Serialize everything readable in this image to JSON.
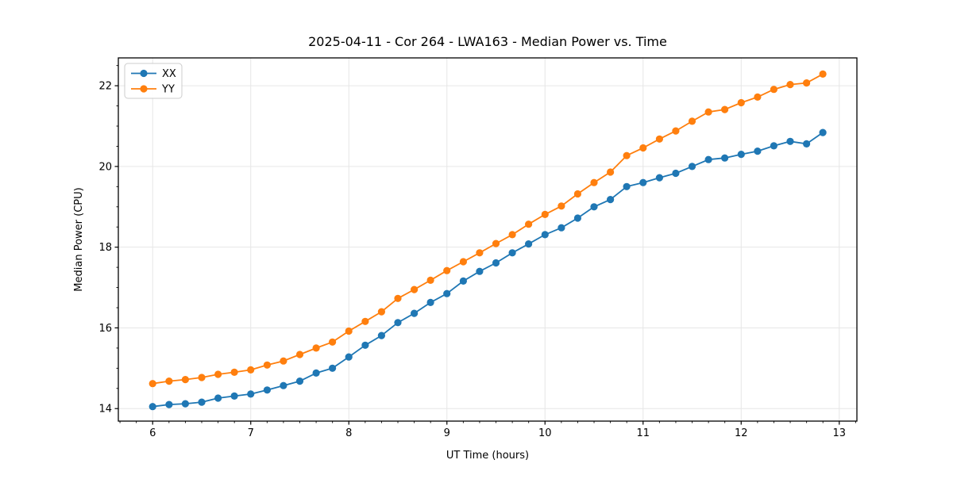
{
  "chart_data": {
    "type": "line",
    "title": "2025-04-11 - Cor 264 - LWA163 - Median Power vs. Time",
    "xlabel": "UT Time (hours)",
    "ylabel": "Median Power (CPU)",
    "xlim": [
      5.65,
      13.18
    ],
    "ylim": [
      13.69,
      22.69
    ],
    "x_ticks": [
      6,
      7,
      8,
      9,
      10,
      11,
      12,
      13
    ],
    "y_ticks": [
      14,
      16,
      18,
      20,
      22
    ],
    "x_minor_step": 0.16667,
    "y_minor_step": 0.5,
    "grid": true,
    "grid_color": "#e6e6e6",
    "spine_color": "#000000",
    "legend_position": "upper-left",
    "x": [
      6.0,
      6.167,
      6.333,
      6.5,
      6.667,
      6.833,
      7.0,
      7.167,
      7.333,
      7.5,
      7.667,
      7.833,
      8.0,
      8.167,
      8.333,
      8.5,
      8.667,
      8.833,
      9.0,
      9.167,
      9.333,
      9.5,
      9.667,
      9.833,
      10.0,
      10.167,
      10.333,
      10.5,
      10.667,
      10.833,
      11.0,
      11.167,
      11.333,
      11.5,
      11.667,
      11.833,
      12.0,
      12.167,
      12.333,
      12.5,
      12.667,
      12.833
    ],
    "series": [
      {
        "name": "XX",
        "color": "#1f77b4",
        "values": [
          14.05,
          14.1,
          14.12,
          14.16,
          14.26,
          14.31,
          14.36,
          14.46,
          14.57,
          14.68,
          14.88,
          15.0,
          15.28,
          15.57,
          15.81,
          16.13,
          16.36,
          16.63,
          16.85,
          17.16,
          17.4,
          17.61,
          17.86,
          18.08,
          18.31,
          18.48,
          18.72,
          19.0,
          19.18,
          19.5,
          19.6,
          19.72,
          19.83,
          20.0,
          20.17,
          20.21,
          20.3,
          20.38,
          20.51,
          20.62,
          20.56,
          20.84
        ]
      },
      {
        "name": "YY",
        "color": "#ff7f0e",
        "values": [
          14.62,
          14.68,
          14.72,
          14.77,
          14.85,
          14.9,
          14.96,
          15.08,
          15.18,
          15.34,
          15.5,
          15.65,
          15.92,
          16.16,
          16.4,
          16.73,
          16.95,
          17.18,
          17.42,
          17.64,
          17.86,
          18.09,
          18.31,
          18.57,
          18.81,
          19.02,
          19.32,
          19.6,
          19.86,
          20.27,
          20.46,
          20.68,
          20.88,
          21.12,
          21.35,
          21.41,
          21.58,
          21.72,
          21.91,
          22.03,
          22.07,
          22.29
        ]
      }
    ]
  }
}
